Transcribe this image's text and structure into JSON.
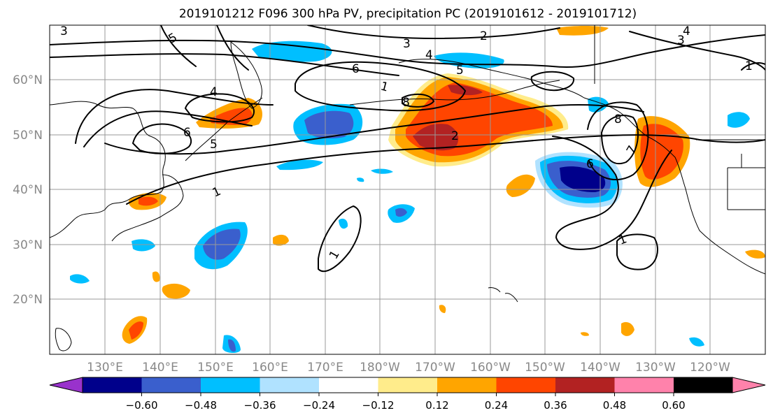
{
  "title": "2019101212 F096 300 hPa PV, precipitation PC (2019101612 - 2019101712)",
  "lat_labels": [
    "60°N",
    "50°N",
    "40°N",
    "30°N",
    "20°N"
  ],
  "lon_labels": [
    "130°E",
    "140°E",
    "150°E",
    "160°E",
    "170°E",
    "180°W",
    "170°W",
    "160°W",
    "150°W",
    "140°W",
    "130°W",
    "120°W"
  ],
  "contour_labels": [
    "1",
    "2",
    "3",
    "4",
    "5",
    "6",
    "7",
    "8"
  ],
  "colorbar": {
    "colors": [
      "#9932CC",
      "#00008B",
      "#3A5FCD",
      "#00BFFF",
      "#B0E2FF",
      "#FFFFFF",
      "#FFEC8B",
      "#FFA500",
      "#FF4500",
      "#B22222",
      "#FF82AB"
    ],
    "tick_labels": [
      "−0.60",
      "−0.48",
      "−0.36",
      "−0.24",
      "−0.12",
      "0.12",
      "0.24",
      "0.36",
      "0.48",
      "0.60"
    ]
  },
  "palette": {
    "pos1": "#FFEC8B",
    "pos2": "#FFA500",
    "pos3": "#FF4500",
    "pos4": "#B22222",
    "neg1": "#B0E2FF",
    "neg2": "#00BFFF",
    "neg3": "#3A5FCD",
    "neg4": "#00008B"
  }
}
